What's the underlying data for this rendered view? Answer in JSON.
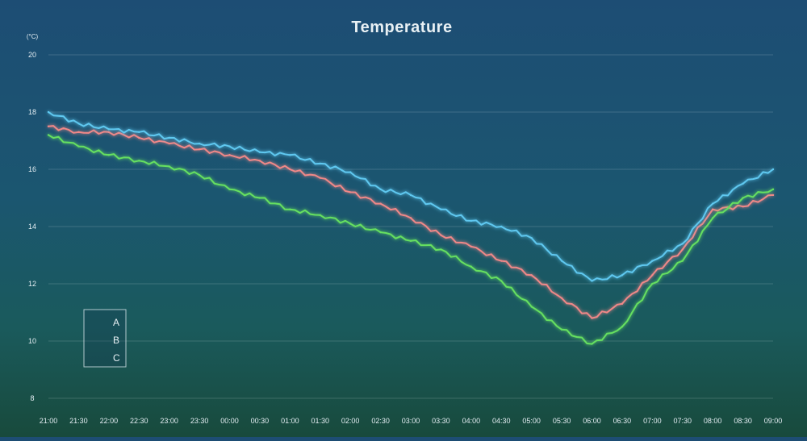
{
  "chart_data": {
    "type": "line",
    "title": "Temperature",
    "unit": "(°C)",
    "xlabel": "",
    "ylabel": "",
    "ylim": [
      8,
      20
    ],
    "yticks": [
      8,
      10,
      12,
      14,
      16,
      18,
      20
    ],
    "categories": [
      "21:00",
      "21:30",
      "22:00",
      "22:30",
      "23:00",
      "23:30",
      "00:00",
      "00:30",
      "01:00",
      "01:30",
      "02:00",
      "02:30",
      "03:00",
      "03:30",
      "04:00",
      "04:30",
      "05:00",
      "05:30",
      "06:00",
      "06:30",
      "07:00",
      "07:30",
      "08:00",
      "08:30",
      "09:00"
    ],
    "grid": true,
    "legend_position": "bottom-left",
    "series": [
      {
        "name": "A",
        "color": "#f08888",
        "values": [
          17.5,
          17.3,
          17.3,
          17.1,
          16.9,
          16.7,
          16.5,
          16.3,
          16.0,
          15.7,
          15.2,
          14.8,
          14.3,
          13.7,
          13.3,
          12.8,
          12.3,
          11.5,
          10.8,
          11.3,
          12.3,
          13.2,
          14.6,
          14.7,
          15.1
        ]
      },
      {
        "name": "B",
        "color": "#5ec8f0",
        "values": [
          18.0,
          17.6,
          17.4,
          17.3,
          17.1,
          16.9,
          16.8,
          16.6,
          16.5,
          16.2,
          15.9,
          15.3,
          15.1,
          14.6,
          14.2,
          14.0,
          13.6,
          12.8,
          12.1,
          12.3,
          12.8,
          13.4,
          14.8,
          15.5,
          16.0
        ]
      },
      {
        "name": "C",
        "color": "#66e060",
        "values": [
          17.2,
          16.8,
          16.5,
          16.3,
          16.1,
          15.8,
          15.3,
          15.0,
          14.6,
          14.4,
          14.1,
          13.8,
          13.5,
          13.2,
          12.6,
          12.1,
          11.2,
          10.4,
          9.9,
          10.5,
          12.0,
          12.8,
          14.3,
          15.0,
          15.3
        ]
      }
    ]
  }
}
